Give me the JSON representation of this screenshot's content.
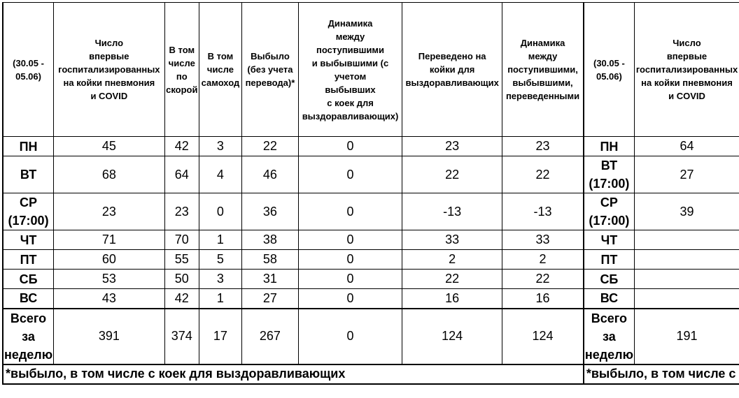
{
  "headers": [
    [
      "(30.05 -",
      "05.06)"
    ],
    [
      "Число",
      "впервые",
      "госпитализированных",
      "на койки пневмония",
      "и COVID"
    ],
    [
      "В том",
      "числе",
      "по",
      "скорой"
    ],
    [
      "В том",
      "числе",
      "самоход"
    ],
    [
      "Выбыло",
      "(без учета",
      "перевода)*"
    ],
    [
      "Динамика",
      "между",
      "поступившими",
      "и выбывшими (с",
      "учетом",
      "выбывших",
      "с коек для",
      "выздоравливающих)"
    ],
    [
      "Переведено на",
      "койки для",
      "выздоравливающих"
    ],
    [
      "Динамика",
      "между",
      "поступившими,",
      "выбывшими,",
      "переведенными"
    ],
    [
      "(30.05 -",
      "05.06)"
    ],
    [
      "Число",
      "впервые",
      "госпитализированных",
      "на койки пневмония",
      "и COVID"
    ]
  ],
  "rows": [
    {
      "day": [
        "ПН"
      ],
      "values": [
        "45",
        "42",
        "3",
        "22",
        "0",
        "23",
        "23"
      ],
      "day2": [
        "ПН"
      ],
      "value2": "64"
    },
    {
      "day": [
        "ВТ"
      ],
      "values": [
        "68",
        "64",
        "4",
        "46",
        "0",
        "22",
        "22"
      ],
      "day2": [
        "ВТ",
        "(17:00)"
      ],
      "value2": "27"
    },
    {
      "day": [
        "СР",
        "(17:00)"
      ],
      "values": [
        "23",
        "23",
        "0",
        "36",
        "0",
        "-13",
        "-13"
      ],
      "day2": [
        "СР",
        "(17:00)"
      ],
      "value2": "39"
    },
    {
      "day": [
        "ЧТ"
      ],
      "values": [
        "71",
        "70",
        "1",
        "38",
        "0",
        "33",
        "33"
      ],
      "day2": [
        "ЧТ"
      ],
      "value2": ""
    },
    {
      "day": [
        "ПТ"
      ],
      "values": [
        "60",
        "55",
        "5",
        "58",
        "0",
        "2",
        "2"
      ],
      "day2": [
        "ПТ"
      ],
      "value2": ""
    },
    {
      "day": [
        "СБ"
      ],
      "values": [
        "53",
        "50",
        "3",
        "31",
        "0",
        "22",
        "22"
      ],
      "day2": [
        "СБ"
      ],
      "value2": ""
    },
    {
      "day": [
        "ВС"
      ],
      "values": [
        "43",
        "42",
        "1",
        "27",
        "0",
        "16",
        "16"
      ],
      "day2": [
        "ВС"
      ],
      "value2": ""
    },
    {
      "day": [
        "Всего",
        "за",
        "неделю"
      ],
      "values": [
        "391",
        "374",
        "17",
        "267",
        "0",
        "124",
        "124"
      ],
      "day2": [
        "Всего",
        "за",
        "неделю"
      ],
      "value2": "191"
    }
  ],
  "footnote": "*выбыло, в том числе с коек для выздоравливающих",
  "footnote2": "*выбыло, в том числе с"
}
